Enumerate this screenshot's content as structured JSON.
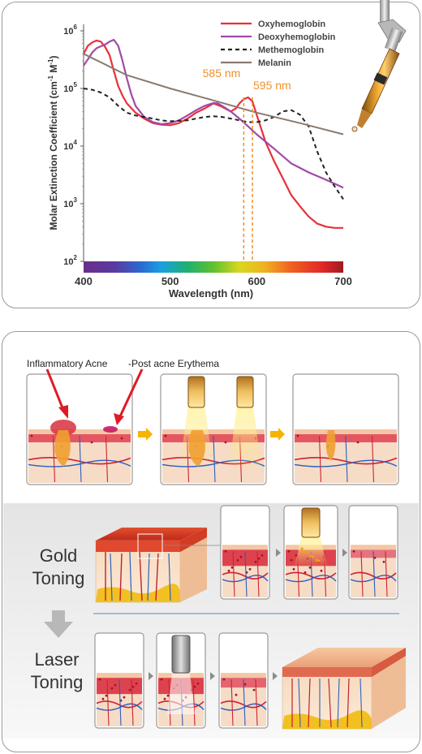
{
  "colors": {
    "oxy": "#e8303a",
    "deoxy": "#a04aa6",
    "met": "#222222",
    "melanin": "#8a7a6e",
    "accent_orange": "#f0902a",
    "arrow_red": "#e01a24",
    "arrow_yellow": "#f5b400",
    "arrow_gray": "#8c8c8c"
  },
  "chart_data": {
    "type": "line",
    "ylabel_main": "Molar Extinction Coefficient (cm",
    "ylabel_sup1": "-1",
    "ylabel_mid": " M",
    "ylabel_sup2": "-1",
    "ylabel_end": ")",
    "xlabel": "Wavelength (nm)",
    "xlim": [
      400,
      700
    ],
    "ylim": [
      100,
      1000000
    ],
    "yscale": "log",
    "x_ticks": [
      "400",
      "500",
      "600",
      "700"
    ],
    "y_ticks": [
      {
        "base": "10",
        "exp": "6",
        "value": 1000000
      },
      {
        "base": "10",
        "exp": "5",
        "value": 100000
      },
      {
        "base": "10",
        "exp": "4",
        "value": 10000
      },
      {
        "base": "10",
        "exp": "3",
        "value": 1000
      },
      {
        "base": "10",
        "exp": "2",
        "value": 100
      }
    ],
    "legend_position": "top-right",
    "series": [
      {
        "name": "Oxyhemoglobin",
        "style": "solid",
        "color_key": "oxy",
        "x": [
          400,
          405,
          410,
          415,
          420,
          425,
          430,
          435,
          440,
          445,
          450,
          460,
          470,
          480,
          490,
          500,
          510,
          520,
          530,
          540,
          550,
          560,
          570,
          576,
          580,
          585,
          590,
          595,
          600,
          610,
          620,
          630,
          640,
          650,
          660,
          670,
          680,
          690,
          700
        ],
        "y": [
          400000,
          550000,
          630000,
          680000,
          650000,
          520000,
          380000,
          200000,
          110000,
          75000,
          55000,
          38000,
          30000,
          25000,
          23500,
          23000,
          25000,
          30000,
          38000,
          45000,
          55000,
          48000,
          40000,
          45000,
          55000,
          65000,
          70000,
          60000,
          35000,
          12000,
          5500,
          2800,
          1400,
          900,
          600,
          450,
          400,
          380,
          380
        ]
      },
      {
        "name": "Deoxyhemoglobin",
        "style": "solid",
        "color_key": "deoxy",
        "x": [
          400,
          405,
          410,
          415,
          420,
          425,
          430,
          435,
          440,
          445,
          450,
          455,
          460,
          470,
          480,
          490,
          500,
          510,
          520,
          530,
          540,
          550,
          555,
          560,
          570,
          580,
          590,
          600,
          620,
          640,
          660,
          680,
          700
        ],
        "y": [
          250000,
          320000,
          420000,
          500000,
          540000,
          580000,
          650000,
          700000,
          550000,
          300000,
          150000,
          80000,
          50000,
          32000,
          26000,
          24000,
          25000,
          28000,
          34000,
          42000,
          50000,
          56000,
          55000,
          50000,
          40000,
          30000,
          22000,
          16000,
          9000,
          5000,
          3500,
          2600,
          1900
        ]
      },
      {
        "name": "Methemoglobin",
        "style": "dashed",
        "color_key": "met",
        "x": [
          400,
          410,
          420,
          430,
          440,
          450,
          460,
          470,
          480,
          490,
          500,
          510,
          520,
          530,
          540,
          550,
          560,
          570,
          580,
          590,
          600,
          610,
          620,
          630,
          640,
          650,
          660,
          670,
          680,
          690,
          700
        ],
        "y": [
          100000,
          95000,
          85000,
          70000,
          50000,
          38000,
          34000,
          32000,
          30000,
          28000,
          27000,
          27500,
          28000,
          30000,
          32000,
          33000,
          32000,
          30000,
          28000,
          26000,
          26000,
          28000,
          32000,
          40000,
          42000,
          35000,
          22000,
          8000,
          3500,
          2000,
          1200
        ]
      },
      {
        "name": "Melanin",
        "style": "solid",
        "color_key": "melanin",
        "x": [
          400,
          450,
          500,
          550,
          600,
          650,
          700
        ],
        "y": [
          400000,
          170000,
          100000,
          62000,
          38000,
          25000,
          16000
        ]
      }
    ],
    "annotations": [
      {
        "text": "585 nm",
        "x": 585
      },
      {
        "text": "595 nm",
        "x": 595
      }
    ]
  },
  "diagram": {
    "acne_label": "Inflammatory Acne",
    "erythema_label": "-Post acne Erythema",
    "gold_label_1": "Gold",
    "gold_label_2": "Toning",
    "laser_label_1": "Laser",
    "laser_label_2": "Toning"
  }
}
